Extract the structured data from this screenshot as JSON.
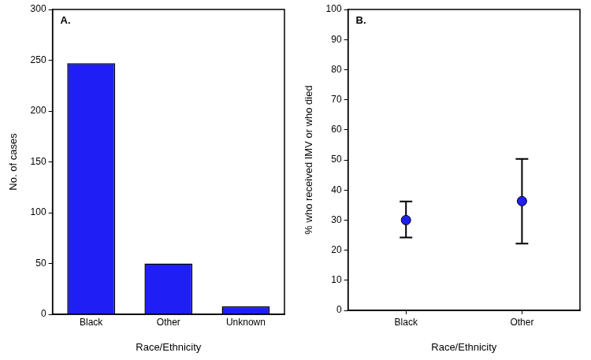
{
  "chart_data": [
    {
      "type": "bar",
      "title": "A.",
      "x_label": "Race/Ethnicity",
      "y_label": "No. of cases",
      "categories": [
        "Black",
        "Other",
        "Unknown"
      ],
      "values": [
        247,
        50,
        8
      ],
      "color": "#1f1ff5",
      "ylim": [
        0,
        300
      ],
      "yticks": [
        0,
        50,
        100,
        150,
        200,
        250,
        300
      ],
      "grid": false
    },
    {
      "type": "scatter",
      "title": "B.",
      "x_label": "Race/Ethnicity",
      "y_label": "% who received IMV or who died",
      "categories": [
        "Black",
        "Other"
      ],
      "values": [
        30,
        36.3
      ],
      "error_lower": [
        24.2,
        22.2
      ],
      "error_upper": [
        36.2,
        50.3
      ],
      "color": "#1f1ff5",
      "marker": "circle",
      "ylim": [
        0,
        100
      ],
      "yticks": [
        0,
        10,
        20,
        30,
        40,
        50,
        60,
        70,
        80,
        90,
        100
      ],
      "grid": false
    }
  ]
}
